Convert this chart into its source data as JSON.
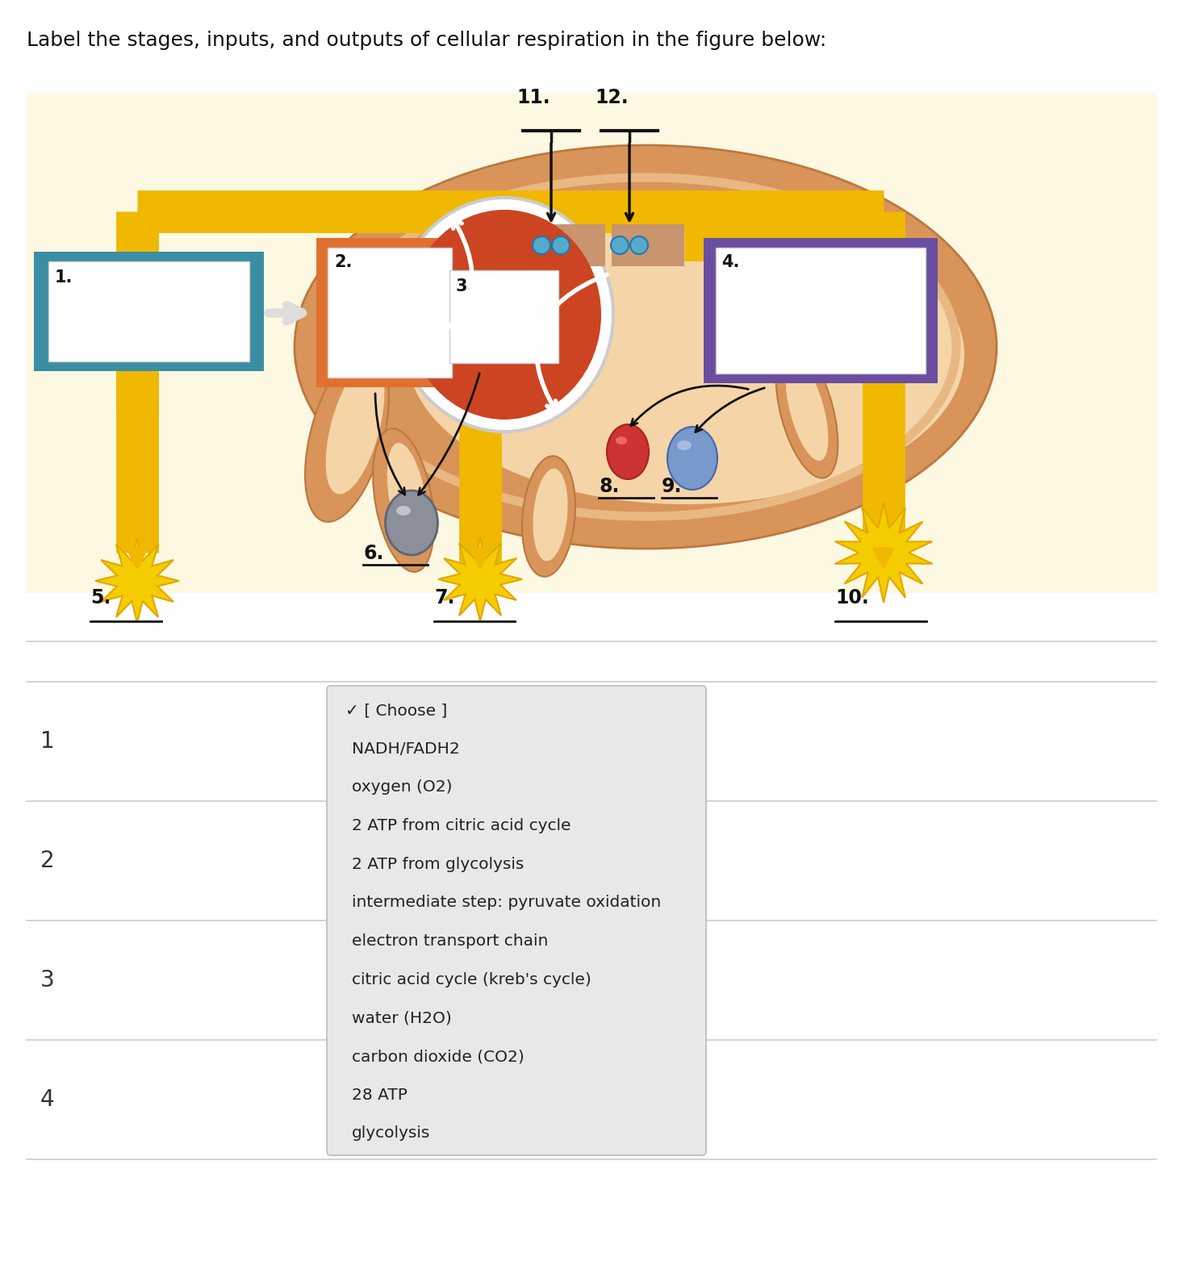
{
  "title": "Label the stages, inputs, and outputs of cellular respiration in the figure below:",
  "bg_color": "#fdf8e1",
  "box1_bg": "#3a8ea3",
  "box2_bg": "#e07030",
  "box3_bg": "#cc4422",
  "box4_bg": "#6b4ea0",
  "pipe_color": "#f0b800",
  "mito_outer": "#d9945a",
  "mito_inner": "#e8b882",
  "mito_matrix": "#f5d5a8",
  "tan_connector": "#c8956e",
  "dropdown_items": [
    "✓ [ Choose ]",
    "NADH/FADH2",
    "oxygen (O2)",
    "2 ATP from citric acid cycle",
    "2 ATP from glycolysis",
    "intermediate step: pyruvate oxidation",
    "electron transport chain",
    "citric acid cycle (kreb's cycle)",
    "water (H2O)",
    "carbon dioxide (CO2)",
    "28 ATP",
    "glycolysis"
  ],
  "row_labels": [
    "1",
    "2",
    "3",
    "4"
  ],
  "star_color": "#f5cc00",
  "star_edge": "#e0a800",
  "gray_sphere": "#909090",
  "red_oval": "#cc3333",
  "blue_oval": "#7799cc",
  "blue_dot": "#55aacc"
}
